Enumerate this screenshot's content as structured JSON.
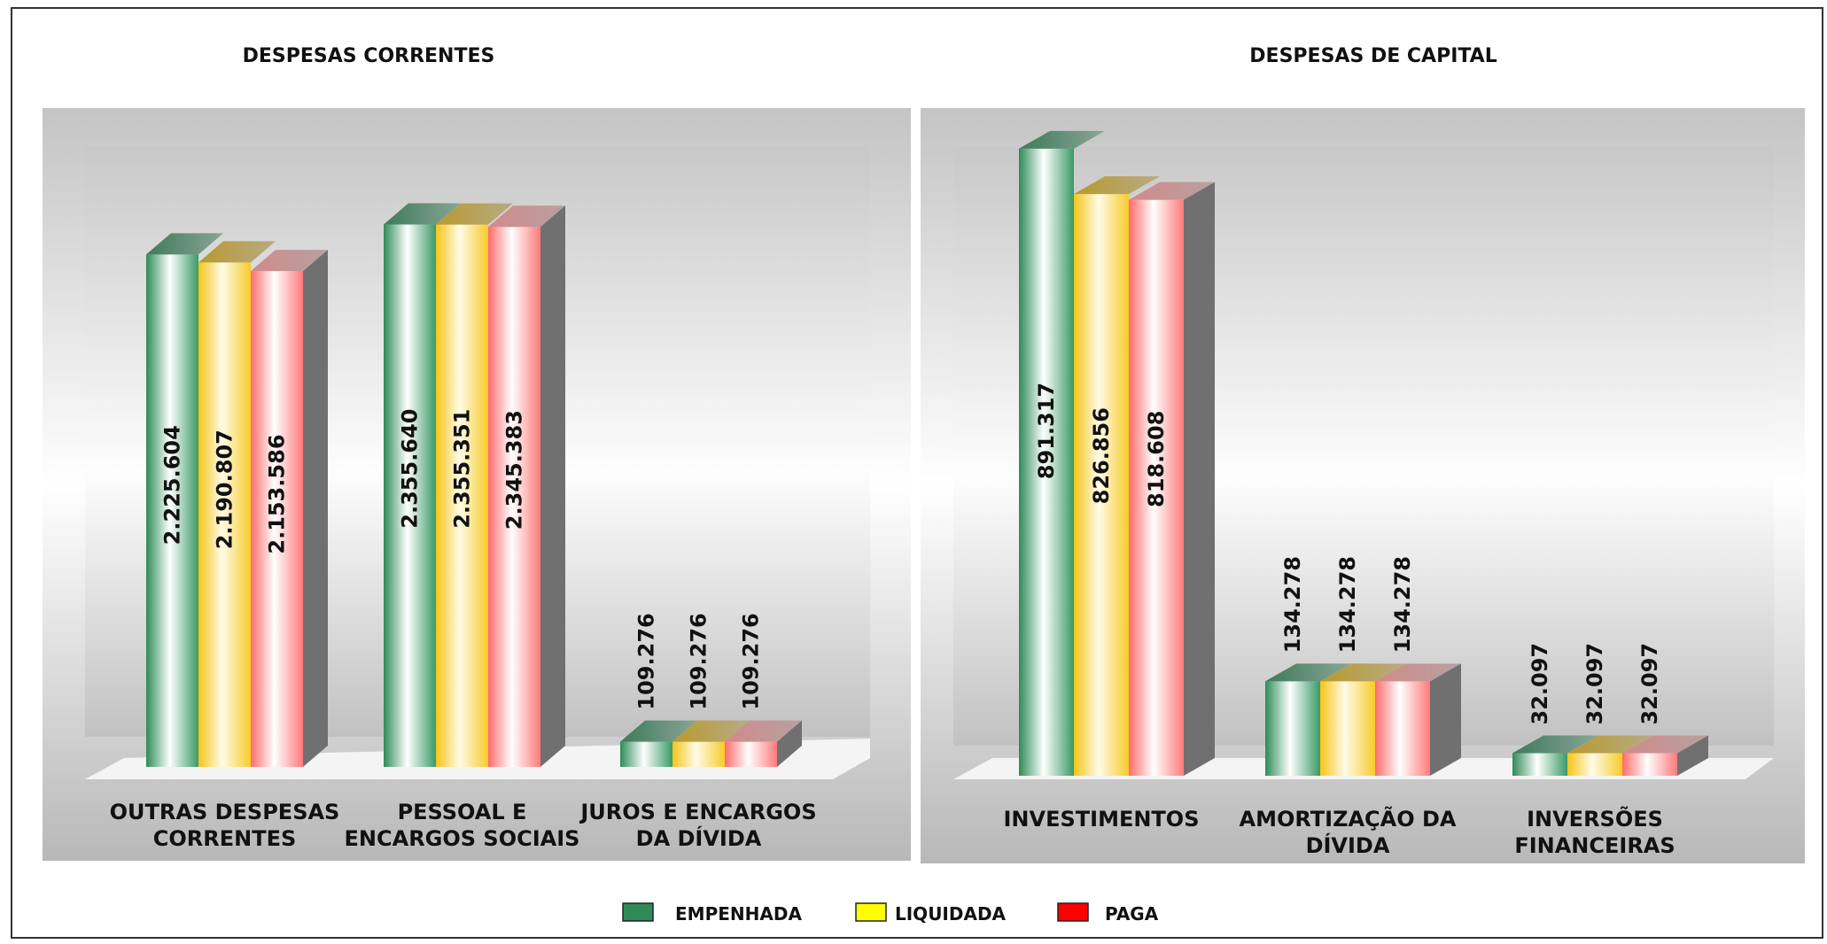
{
  "chart_data": [
    {
      "type": "bar",
      "title": "DESPESAS CORRENTES",
      "categories": [
        "OUTRAS DESPESAS CORRENTES",
        "PESSOAL E ENCARGOS SOCIAIS",
        "JUROS E ENCARGOS DA DÍVIDA"
      ],
      "category_lines": [
        [
          "OUTRAS DESPESAS",
          "CORRENTES"
        ],
        [
          "PESSOAL E",
          "ENCARGOS SOCIAIS"
        ],
        [
          "JUROS E ENCARGOS",
          "DA DÍVIDA"
        ]
      ],
      "series": [
        {
          "name": "EMPENHADA",
          "values": [
            2225604,
            2355640,
            109276
          ],
          "labels": [
            "2.225.604",
            "2.355.640",
            "109.276"
          ]
        },
        {
          "name": "LIQUIDADA",
          "values": [
            2190807,
            2355351,
            109276
          ],
          "labels": [
            "2.190.807",
            "2.355.351",
            "109.276"
          ]
        },
        {
          "name": "PAGA",
          "values": [
            2153586,
            2345383,
            109276
          ],
          "labels": [
            "2.153.586",
            "2.345.383",
            "109.276"
          ]
        }
      ],
      "ylim": [
        0,
        2500000
      ],
      "grid": false
    },
    {
      "type": "bar",
      "title": "DESPESAS DE CAPITAL",
      "categories": [
        "INVESTIMENTOS",
        "AMORTIZAÇÃO DA DÍVIDA",
        "INVERSÕES FINANCEIRAS"
      ],
      "category_lines": [
        [
          "INVESTIMENTOS"
        ],
        [
          "AMORTIZAÇÃO DA",
          "DÍVIDA"
        ],
        [
          "INVERSÕES",
          "FINANCEIRAS"
        ]
      ],
      "series": [
        {
          "name": "EMPENHADA",
          "values": [
            891317,
            134278,
            32097
          ],
          "labels": [
            "891.317",
            "134.278",
            "32.097"
          ]
        },
        {
          "name": "LIQUIDADA",
          "values": [
            826856,
            134278,
            32097
          ],
          "labels": [
            "826.856",
            "134.278",
            "32.097"
          ]
        },
        {
          "name": "PAGA",
          "values": [
            818608,
            134278,
            32097
          ],
          "labels": [
            "818.608",
            "134.278",
            "32.097"
          ]
        }
      ],
      "ylim": [
        0,
        900000
      ],
      "grid": false
    }
  ],
  "legend": {
    "placement": "bottom-center",
    "items": [
      {
        "name": "EMPENHADA",
        "color": "#2e8b57"
      },
      {
        "name": "LIQUIDADA",
        "color": "#ffff00"
      },
      {
        "name": "PAGA",
        "color": "#ff0000"
      }
    ]
  },
  "colors": {
    "EMPENHADA": "#2e8b57",
    "LIQUIDADA": "#f5c518",
    "PAGA": "#ff6b6b"
  }
}
